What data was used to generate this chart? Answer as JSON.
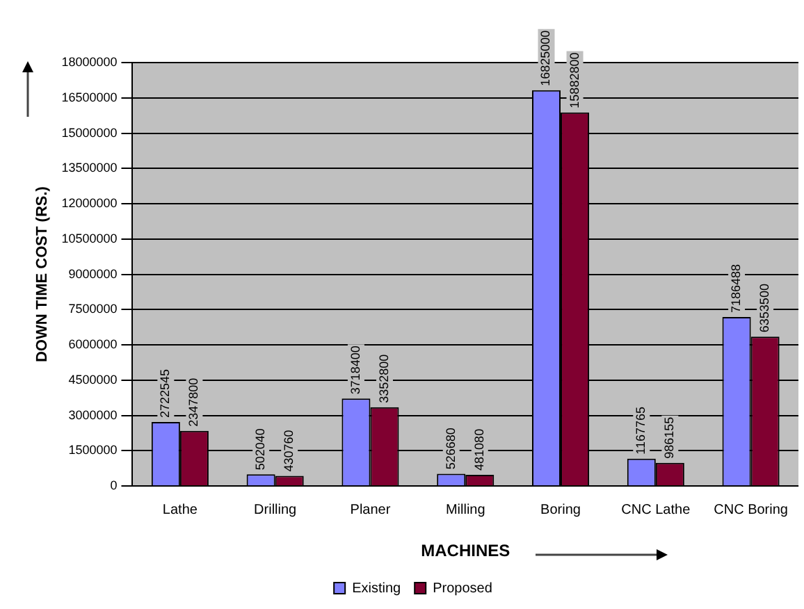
{
  "chart_data": {
    "type": "bar",
    "xlabel": "MACHINES",
    "ylabel": "DOWN TIME COST (RS.)",
    "categories": [
      "Lathe",
      "Drilling",
      "Planer",
      "Milling",
      "Boring",
      "CNC Lathe",
      "CNC Boring"
    ],
    "series": [
      {
        "name": "Existing",
        "color": "#8080ff",
        "values": [
          2722545,
          502040,
          3718400,
          526680,
          16825000,
          1167765,
          7186488
        ]
      },
      {
        "name": "Proposed",
        "color": "#800030",
        "values": [
          2347800,
          430760,
          3352800,
          481080,
          15882800,
          986155,
          6353500
        ]
      }
    ],
    "ylim": [
      0,
      18000000
    ],
    "yticks": [
      0,
      1500000,
      3000000,
      4500000,
      6000000,
      7500000,
      9000000,
      10500000,
      12000000,
      13500000,
      15000000,
      16500000,
      18000000
    ],
    "grid": "y",
    "legend": "bottom",
    "data_labels": true
  }
}
